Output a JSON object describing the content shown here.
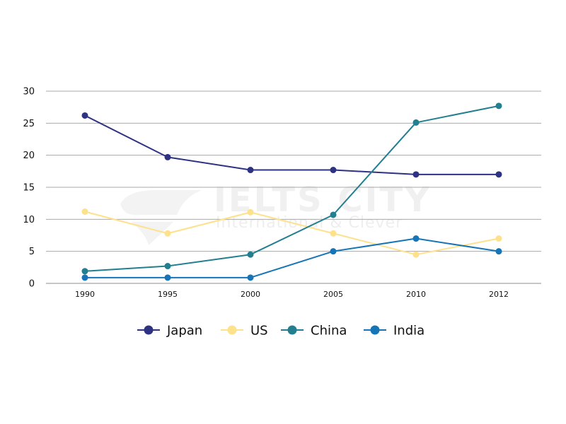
{
  "chart_data": {
    "type": "line",
    "x": [
      "1990",
      "1995",
      "2000",
      "2005",
      "2010",
      "2012"
    ],
    "series": [
      {
        "name": "Japan",
        "color": "#2e3283",
        "values": [
          26.2,
          19.7,
          17.7,
          17.7,
          17.0,
          17.0
        ]
      },
      {
        "name": "US",
        "color": "#fde18b",
        "values": [
          11.2,
          7.8,
          11.1,
          7.8,
          4.5,
          7.0
        ]
      },
      {
        "name": "China",
        "color": "#227f8f",
        "values": [
          1.9,
          2.7,
          4.5,
          10.7,
          25.1,
          27.7
        ]
      },
      {
        "name": "India",
        "color": "#1675b6",
        "values": [
          0.9,
          0.9,
          0.9,
          5.0,
          7.0,
          5.0
        ]
      }
    ],
    "yticks": [
      "0",
      "5",
      "10",
      "15",
      "20",
      "25",
      "30"
    ],
    "ylim": [
      0,
      30
    ],
    "title": "",
    "xlabel": "",
    "ylabel": "",
    "grid": "horizontal",
    "legend_position": "bottom-center"
  },
  "watermark": {
    "main": "IELTS CITY",
    "sub": "International & Clever"
  },
  "colors": {
    "grid": "#a9a9a9",
    "axis": "#8c8c8c"
  }
}
